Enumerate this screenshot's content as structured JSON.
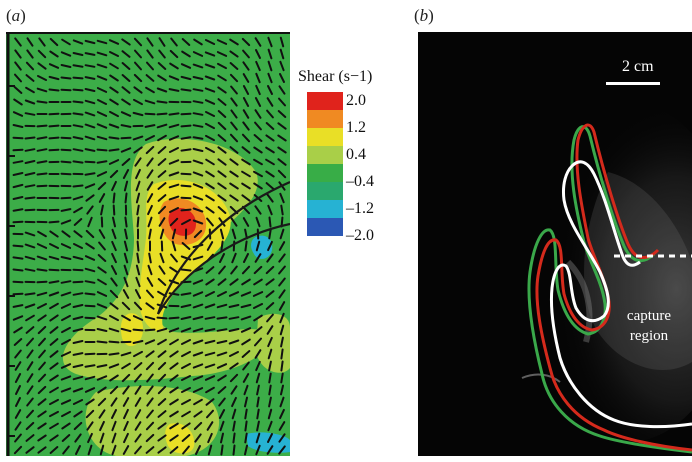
{
  "panels": {
    "a": {
      "label_open": "(",
      "label_letter": "a",
      "label_close": ")"
    },
    "b": {
      "label_open": "(",
      "label_letter": "b",
      "label_close": ")"
    }
  },
  "colorbar": {
    "title": "Shear (s−1)",
    "ticks": [
      "2.0",
      "1.2",
      "0.4",
      "–0.4",
      "–1.2",
      "–2.0"
    ],
    "colors": [
      "#e0231c",
      "#f08a22",
      "#e9df26",
      "#a9cf48",
      "#38ad47",
      "#2aa86e",
      "#26b2d3",
      "#2b58b4"
    ]
  },
  "field": {
    "background_color": "#3cad48",
    "vectors": "dense black arrow grid"
  },
  "photo": {
    "scale_label": "2 cm",
    "capture_label": [
      "capture",
      "region"
    ],
    "outline_colors": {
      "green": "#3aa84a",
      "red": "#d42a1c",
      "white": "#ffffff"
    }
  }
}
